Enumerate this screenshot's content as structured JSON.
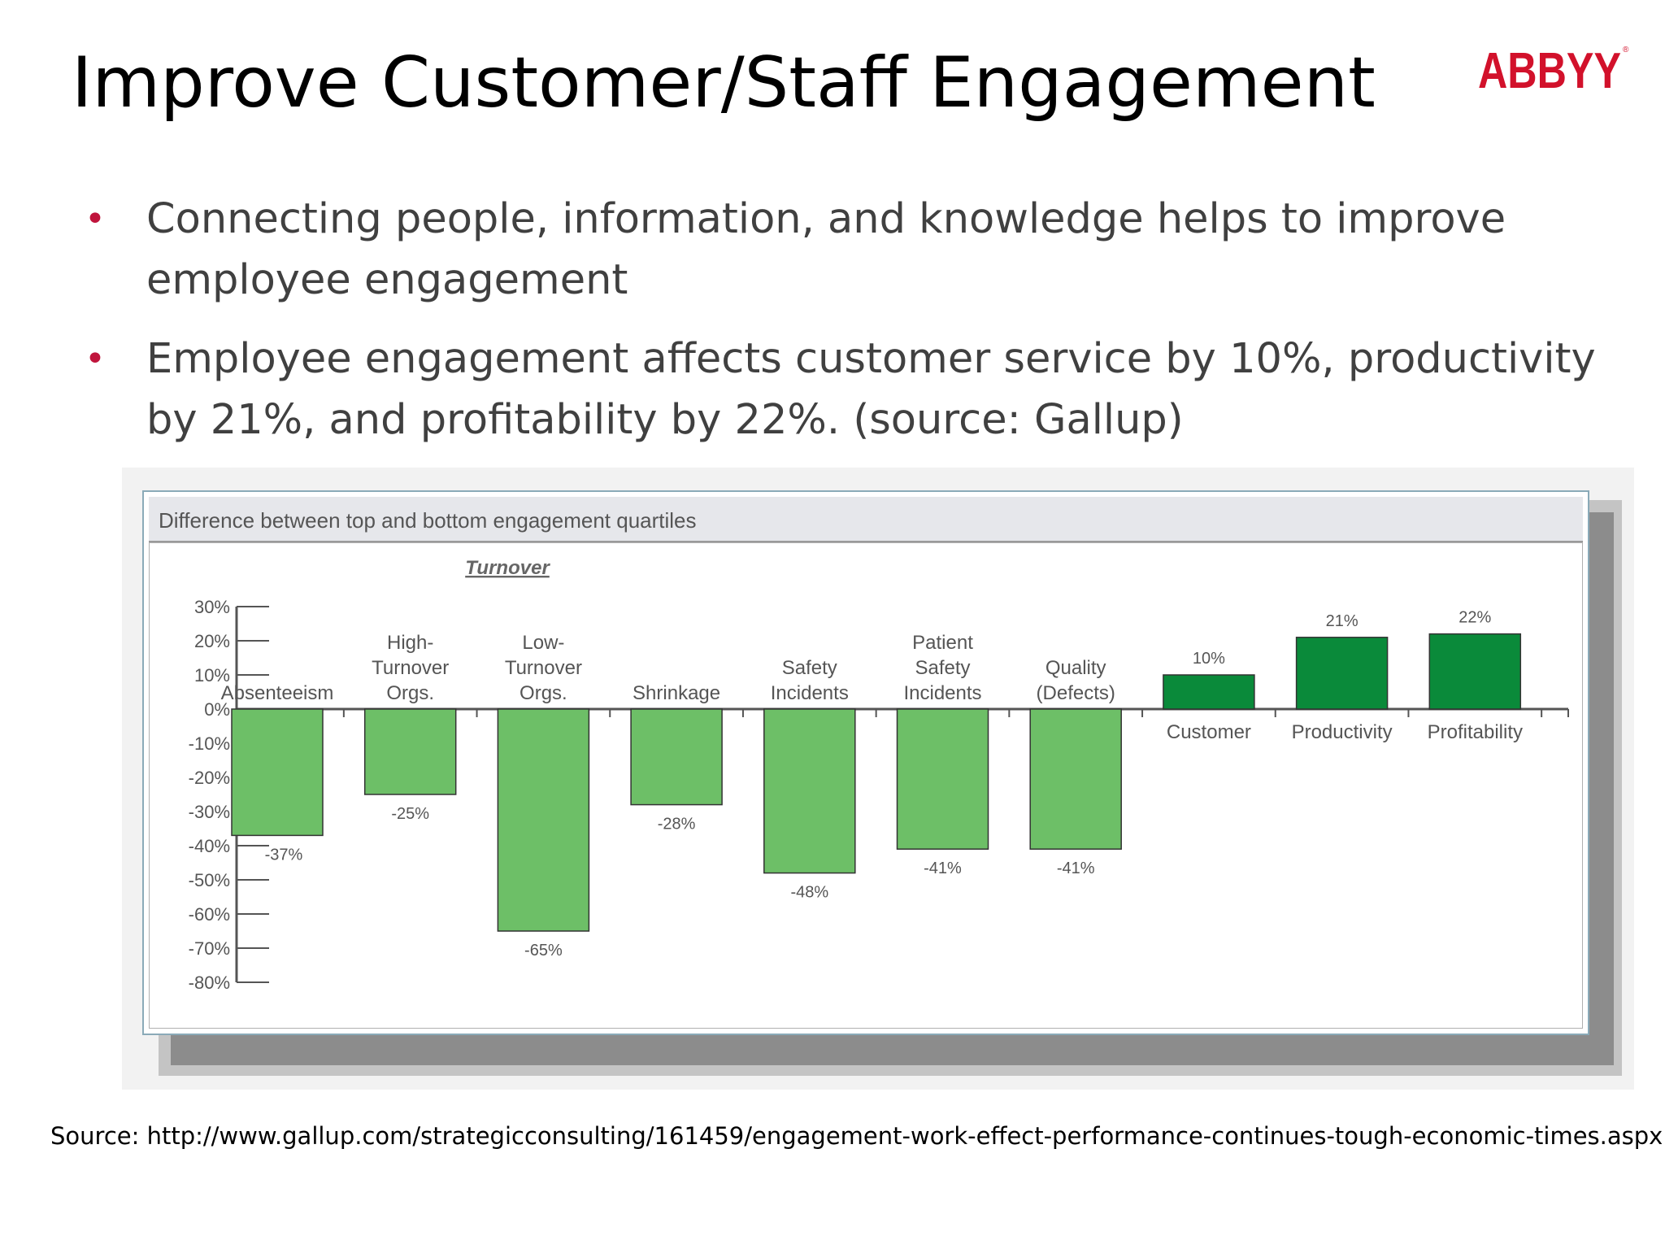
{
  "slide": {
    "title": "Improve Customer/Staff Engagement",
    "logo_text": "ABBYY",
    "bullets": [
      "Connecting people, information, and knowledge helps to improve employee engagement",
      "Employee engagement affects customer service by 10%, productivity by 21%, and profitability by 22%. (source: Gallup)"
    ],
    "source": "Source: http://www.gallup.com/strategicconsulting/161459/engagement-work-effect-performance-continues-tough-economic-times.aspx"
  },
  "colors": {
    "logo_red": "#d2112b",
    "bullet_red": "#c0143c",
    "negative_bar": "#6dbf67",
    "positive_bar": "#0a8a3a",
    "axis": "#555555"
  },
  "chart_data": {
    "type": "bar",
    "title": "Difference between top and bottom engagement quartiles",
    "group_label": "Turnover",
    "categories": [
      [
        "Absenteeism"
      ],
      [
        "High-",
        "Turnover",
        "Orgs."
      ],
      [
        "Low-",
        "Turnover",
        "Orgs."
      ],
      [
        "Shrinkage"
      ],
      [
        "Safety",
        "Incidents"
      ],
      [
        "Patient",
        "Safety",
        "Incidents"
      ],
      [
        "Quality",
        "(Defects)"
      ],
      [
        "Customer"
      ],
      [
        "Productivity"
      ],
      [
        "Profitability"
      ]
    ],
    "values": [
      -37,
      -25,
      -65,
      -28,
      -48,
      -41,
      -41,
      10,
      21,
      22
    ],
    "value_labels": [
      "-37%",
      "-25%",
      "-65%",
      "-28%",
      "-48%",
      "-41%",
      "-41%",
      "10%",
      "21%",
      "22%"
    ],
    "y_ticks": [
      "30%",
      "20%",
      "10%",
      "0%",
      "-10%",
      "-20%",
      "-30%",
      "-40%",
      "-50%",
      "-60%",
      "-70%",
      "-80%"
    ],
    "ylim": [
      -80,
      30
    ],
    "grid": false,
    "legend": "none"
  }
}
